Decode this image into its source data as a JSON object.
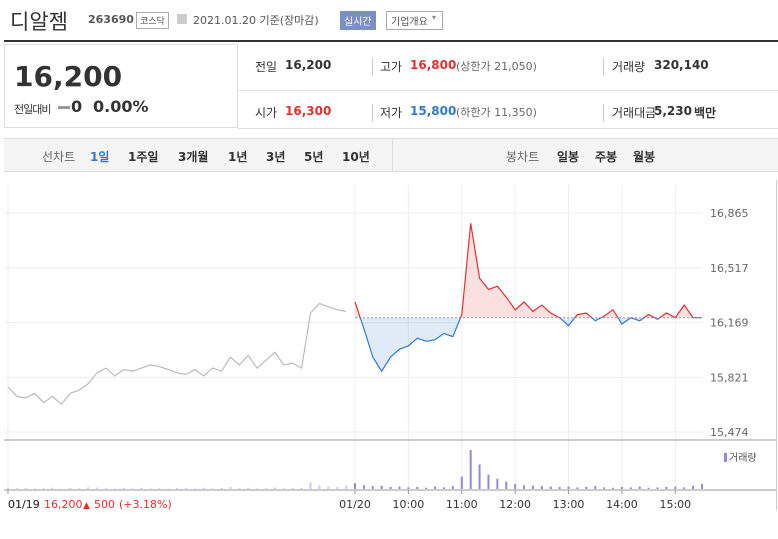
{
  "header": {
    "name": "디알젬",
    "code": "263690",
    "market": "코스닥",
    "date": "2021.01.20 기준(장마감)",
    "realtime": "실시간",
    "overview": "기업개요"
  },
  "quote": {
    "price": "16,200",
    "change_label": "전일대비",
    "change": "0",
    "rate": "0.00%"
  },
  "stats": [
    [
      {
        "label": "전일",
        "value": "16,200"
      },
      {
        "label": "고가",
        "value": "16,800",
        "note": "(상한가 21,050)"
      },
      {
        "label": "거래량",
        "value": "320,140"
      }
    ],
    [
      {
        "label": "시가",
        "value": "16,300"
      },
      {
        "label": "저가",
        "value": "15,800",
        "note": "(하한가 11,350)"
      },
      {
        "label": "거래대금",
        "value": "5,230",
        "unit": "백만"
      }
    ]
  ],
  "tabs": {
    "line_label": "선차트",
    "periods": [
      "1일",
      "1주일",
      "3개월",
      "1년",
      "3년",
      "5년",
      "10년"
    ],
    "candle_label": "봉차트",
    "candles": [
      "일봉",
      "주봉",
      "월봉"
    ]
  },
  "chart_data": {
    "type": "line",
    "x": [
      "01/19",
      null,
      null,
      null,
      null,
      null,
      null,
      null,
      null,
      null,
      null,
      null,
      null,
      null,
      null,
      null,
      null,
      null,
      null,
      null,
      null,
      null,
      null,
      null,
      null,
      null,
      null,
      null,
      null,
      null,
      null,
      null,
      null,
      null,
      null,
      null,
      null,
      null,
      null,
      "01/20",
      null,
      null,
      null,
      null,
      null,
      "10:00",
      null,
      null,
      null,
      null,
      null,
      "11:00",
      null,
      null,
      null,
      null,
      null,
      "12:00",
      null,
      null,
      null,
      null,
      null,
      "13:00",
      null,
      null,
      null,
      null,
      null,
      "14:00",
      null,
      null,
      null,
      null,
      null,
      "15:00",
      null,
      null,
      null
    ],
    "series": [
      {
        "color": "#bbbbbb",
        "values": [
          15760,
          15700,
          15690,
          15720,
          15660,
          15700,
          15650,
          15720,
          15740,
          15780,
          15850,
          15880,
          15830,
          15870,
          15860,
          15880,
          15900,
          15890,
          15870,
          15850,
          15840,
          15870,
          15830,
          15880,
          15860,
          15950,
          15900,
          15960,
          15880,
          15930,
          15980,
          15900,
          15910,
          15880,
          16230,
          16290,
          16270,
          16250,
          16240,
          null,
          null,
          null,
          null,
          null,
          null,
          null,
          null,
          null,
          null,
          null,
          null,
          null,
          null,
          null,
          null,
          null,
          null,
          null,
          null,
          null,
          null,
          null,
          null,
          null,
          null,
          null,
          null,
          null,
          null,
          null,
          null,
          null,
          null,
          null,
          null,
          null,
          null,
          null,
          null
        ]
      },
      {
        "color": "#e62e2e",
        "color_down": "#3278d2",
        "values": [
          null,
          null,
          null,
          null,
          null,
          null,
          null,
          null,
          null,
          null,
          null,
          null,
          null,
          null,
          null,
          null,
          null,
          null,
          null,
          null,
          null,
          null,
          null,
          null,
          null,
          null,
          null,
          null,
          null,
          null,
          null,
          null,
          null,
          null,
          null,
          null,
          null,
          null,
          null,
          16300,
          16130,
          15950,
          15860,
          15950,
          16000,
          16020,
          16070,
          16050,
          16060,
          16100,
          16080,
          16220,
          16800,
          16450,
          16380,
          16400,
          16330,
          16250,
          16300,
          16240,
          16280,
          16230,
          16200,
          16150,
          16220,
          16230,
          16180,
          16210,
          16250,
          16160,
          16200,
          16180,
          16220,
          16190,
          16230,
          16200,
          16280,
          16200,
          16200
        ]
      }
    ],
    "baseline": 16200,
    "ylim": [
      15423,
      17043
    ],
    "yticks": [
      {
        "value": 16865,
        "label": "16,865"
      },
      {
        "value": 16517,
        "label": "16,517"
      },
      {
        "value": 16169,
        "label": "16,169"
      },
      {
        "value": 15821,
        "label": "15,821"
      },
      {
        "value": 15474,
        "label": "15,474"
      }
    ],
    "grid": true,
    "volume": {
      "label": "거래량",
      "color": "#9a86d2",
      "ylim": [
        0,
        100000
      ],
      "values": [
        3000,
        2000,
        2500,
        1500,
        2000,
        3000,
        1000,
        2500,
        2000,
        4000,
        3500,
        2000,
        1500,
        2500,
        2000,
        3000,
        1500,
        2000,
        1000,
        2500,
        2000,
        1500,
        3000,
        2000,
        2500,
        5000,
        2000,
        3000,
        1500,
        2000,
        3500,
        2000,
        2500,
        3000,
        16000,
        9000,
        6000,
        5000,
        8000,
        14000,
        9000,
        7000,
        8000,
        5000,
        6000,
        4000,
        5000,
        3000,
        6000,
        4000,
        7000,
        30000,
        95000,
        60000,
        35000,
        25000,
        18000,
        12000,
        9000,
        8000,
        7000,
        6000,
        5000,
        6000,
        4000,
        5000,
        7000,
        4000,
        3000,
        5000,
        4000,
        6000,
        3000,
        4000,
        5000,
        6000,
        4000,
        8000,
        12000
      ]
    }
  },
  "footer": {
    "date": "01/19",
    "price": "16,200",
    "change": "500",
    "rate": "(+3.18%)"
  }
}
